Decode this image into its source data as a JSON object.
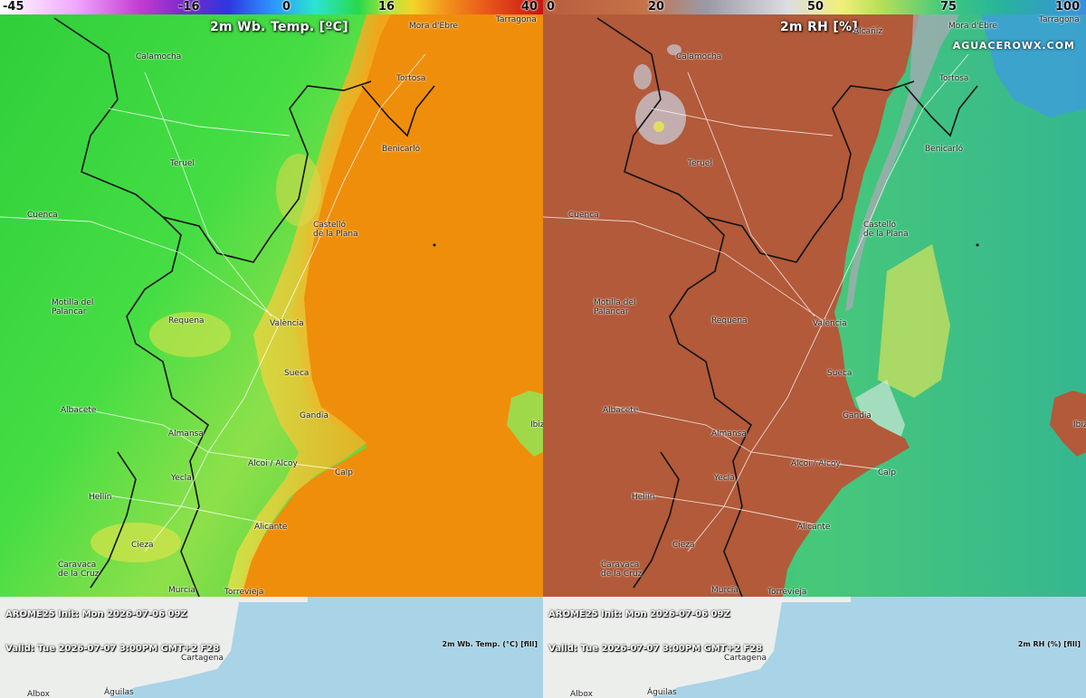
{
  "left": {
    "colorbar_ticks": [
      "-45",
      "-16",
      "0",
      "16",
      "40"
    ],
    "title": "2m Wb. Temp. [ºC]",
    "model_line": "AROME25 Init: Mon 2026-07-06 09Z",
    "valid_line": "Valid: Tue 2026-07-07 3:00PM GMT+2 F28",
    "legend_text": "2m Wb. Temp. (°C) [fill]",
    "land_color": "#39d93b",
    "sea_color": "#f0900a"
  },
  "right": {
    "colorbar_ticks": [
      "0",
      "20",
      "50",
      "75",
      "100"
    ],
    "title": "2m RH [%]",
    "brand": "AGUACEROWX.COM",
    "model_line": "AROME25 Init: Mon 2026-07-06 09Z",
    "valid_line": "Valid: Tue 2026-07-07 3:00PM GMT+2 F28",
    "legend_text": "2m RH (%) [fill]",
    "land_color": "#b65a3c",
    "sea_color": "#3fc68a"
  },
  "cities": {
    "mora": "Mora d'Ebre",
    "alcaniz": "Alcañiz",
    "tarragona": "Tarragona",
    "calamocha": "Calamocha",
    "tortosa": "Tortosa",
    "benicarlo": "Benicarló",
    "teruel": "Teruel",
    "cuenca": "Cuenca",
    "castello": "Castelló\nde la Plana",
    "motilla": "Motilla del\nPalancar",
    "requena": "Requena",
    "valencia": "València",
    "sueca": "Sueca",
    "albacete": "Albacete",
    "gandia": "Gandia",
    "ibiza": "Ibiza",
    "almansa": "Almansa",
    "alcoi": "Alcoi / Alcoy",
    "calp": "Calp",
    "yecla": "Yecla",
    "hellin": "Hellín",
    "alicante": "Alicante",
    "cieza": "Cieza",
    "caravaca": "Caravaca\nde la Cruz",
    "murcia": "Murcia",
    "torrevieja": "Torrevieja",
    "cartagena": "Cartagena",
    "albox": "Albox",
    "aguilas": "Águilas"
  }
}
